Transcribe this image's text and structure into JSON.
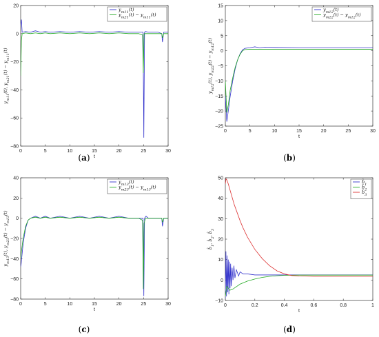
{
  "chart_data": [
    {
      "type": "line",
      "panel_label": "(a)",
      "xlabel": "t",
      "ylabel": "y_{m11}(t), y_{m21}(t) − y_{m11}(t)",
      "xlim": [
        0,
        30
      ],
      "ylim": [
        -80,
        20
      ],
      "xticks": [
        "0",
        "5",
        "10",
        "15",
        "20",
        "25",
        "30"
      ],
      "yticks": [
        "20",
        "0",
        "−20",
        "−40",
        "−60",
        "−80"
      ],
      "legend": [
        "y_{m11}(t)",
        "y_{m21}(t) − y_{m11}(t)"
      ],
      "legend_position": "top-right",
      "series": [
        {
          "name": "y_{m11}(t)",
          "color": "#3333cc",
          "x": [
            0,
            0.15,
            0.3,
            1,
            2,
            3,
            4,
            5,
            6,
            8,
            10,
            12,
            14,
            16,
            18,
            20,
            22,
            24,
            24.9,
            25.05,
            25.2,
            25.4,
            26,
            27,
            28,
            28.7,
            28.85,
            29.1,
            30
          ],
          "y": [
            6,
            10,
            1,
            1.5,
            1,
            2,
            1,
            1.5,
            1,
            1.5,
            1,
            1.5,
            1,
            1.5,
            1,
            1.5,
            1,
            1,
            1,
            -74,
            1,
            1.5,
            1,
            1,
            1,
            0,
            -6,
            1,
            1
          ]
        },
        {
          "name": "y_{m21}(t) − y_{m11}(t)",
          "color": "#22aa22",
          "x": [
            0,
            0.15,
            0.3,
            1,
            2,
            3,
            4,
            5,
            6,
            8,
            10,
            12,
            14,
            16,
            18,
            20,
            22,
            24,
            24.8,
            24.95,
            25.1,
            25.3,
            26,
            27,
            28,
            28.7,
            28.85,
            29.1,
            30
          ],
          "y": [
            -30,
            -5,
            0,
            0.5,
            0,
            0.5,
            0,
            0.5,
            0,
            0.5,
            0,
            0.5,
            0,
            0.5,
            0,
            0.5,
            0,
            0,
            -1,
            -28,
            0,
            0,
            0,
            0,
            0,
            0,
            -3,
            0,
            0
          ]
        }
      ]
    },
    {
      "type": "line",
      "panel_label": "(b)",
      "xlabel": "t",
      "ylabel": "y_{m12}(t), y_{m22}(t) − y_{m12}(t)",
      "xlim": [
        0,
        30
      ],
      "ylim": [
        -25,
        15
      ],
      "xticks": [
        "0",
        "5",
        "10",
        "15",
        "20",
        "25",
        "30"
      ],
      "yticks": [
        "15",
        "10",
        "5",
        "0",
        "−5",
        "−10",
        "−15",
        "−20",
        "−25"
      ],
      "legend": [
        "y_{m12}(t)",
        "y_{m22}(t) − y_{m12}(t)"
      ],
      "legend_position": "top-right",
      "series": [
        {
          "name": "y_{m12}(t)",
          "color": "#3333cc",
          "x": [
            0,
            0.3,
            0.6,
            1,
            1.5,
            2,
            2.5,
            3,
            3.5,
            4,
            5,
            6,
            7,
            8,
            10,
            15,
            20,
            25,
            30
          ],
          "y": [
            -15,
            -23.5,
            -20,
            -15,
            -10,
            -6,
            -3,
            -1,
            0.3,
            0.8,
            1,
            1.3,
            1,
            1.2,
            1.1,
            1,
            1,
            1,
            1
          ]
        },
        {
          "name": "y_{m22}(t) − y_{m12}(t)",
          "color": "#22aa22",
          "x": [
            0,
            0.3,
            0.6,
            1,
            1.5,
            2,
            2.5,
            3,
            3.5,
            4,
            5,
            6,
            7,
            8,
            10,
            15,
            20,
            25,
            30
          ],
          "y": [
            -10,
            -20.5,
            -18,
            -13,
            -9,
            -5.5,
            -3,
            -1.2,
            0,
            0.4,
            0.5,
            0.5,
            0.5,
            0.5,
            0.5,
            0.5,
            0.5,
            0.5,
            0.5
          ]
        }
      ]
    },
    {
      "type": "line",
      "panel_label": "(c)",
      "xlabel": "t",
      "ylabel": "y_{m13}(t), y_{m23}(t) − y_{m13}(t)",
      "xlim": [
        0,
        30
      ],
      "ylim": [
        -80,
        40
      ],
      "xticks": [
        "0",
        "5",
        "10",
        "15",
        "20",
        "25",
        "30"
      ],
      "yticks": [
        "40",
        "20",
        "0",
        "−20",
        "−40",
        "−60",
        "−80"
      ],
      "legend": [
        "y_{m13}(t)",
        "y_{m23}(t) − y_{m13}(t)"
      ],
      "legend_position": "top-right",
      "series": [
        {
          "name": "y_{m13}(t)",
          "color": "#3333cc",
          "x": [
            0,
            0.1,
            0.5,
            1,
            1.5,
            2,
            3,
            4,
            5,
            6,
            8,
            10,
            12,
            14,
            16,
            18,
            20,
            22,
            24,
            24.9,
            25.05,
            25.2,
            25.5,
            26,
            27,
            28,
            28.7,
            28.85,
            29.1,
            30
          ],
          "y": [
            -48,
            -45,
            -25,
            -10,
            -2,
            0,
            2,
            0,
            2,
            0,
            2,
            0,
            2,
            0,
            2,
            0,
            2,
            0,
            0,
            0,
            -77,
            0,
            2,
            0,
            0,
            0,
            0,
            -8,
            0,
            0
          ]
        },
        {
          "name": "y_{m23}(t) − y_{m13}(t)",
          "color": "#22aa22",
          "x": [
            0,
            0.1,
            0.5,
            1,
            1.5,
            2,
            3,
            4,
            5,
            6,
            8,
            10,
            12,
            14,
            16,
            18,
            20,
            22,
            24,
            24.8,
            24.95,
            25.1,
            25.4,
            26,
            27,
            28,
            28.7,
            28.85,
            29.1,
            30
          ],
          "y": [
            -40,
            -35,
            -20,
            -8,
            -2,
            0,
            1,
            0,
            1,
            0,
            1,
            0,
            1,
            0,
            1,
            0,
            1,
            0,
            0,
            -2,
            -70,
            -5,
            0,
            0,
            0,
            0,
            0,
            -4,
            0,
            0
          ]
        }
      ]
    },
    {
      "type": "line",
      "panel_label": "(d)",
      "xlabel": "t",
      "ylabel": "b̂_1, b̂_2, b̂_3",
      "xlim": [
        0,
        1
      ],
      "ylim": [
        -10,
        50
      ],
      "xticks": [
        "0",
        "0.2",
        "0.4",
        "0.6",
        "0.8",
        "1"
      ],
      "yticks": [
        "50",
        "40",
        "30",
        "20",
        "10",
        "0",
        "−10"
      ],
      "legend": [
        "b̂_1",
        "b̂_2",
        "b̂_3"
      ],
      "legend_position": "top-right",
      "series": [
        {
          "name": "b̂_1",
          "color": "#3333cc",
          "x": [
            0,
            0.004,
            0.008,
            0.012,
            0.016,
            0.02,
            0.024,
            0.028,
            0.032,
            0.036,
            0.04,
            0.046,
            0.052,
            0.058,
            0.065,
            0.075,
            0.09,
            0.1,
            0.12,
            0.15,
            0.2,
            0.3,
            0.4,
            0.5,
            0.6,
            0.8,
            1
          ],
          "y": [
            -9,
            14,
            -8,
            12,
            -6,
            10,
            -7,
            9,
            -4,
            8,
            -3,
            6,
            0,
            7,
            1,
            5,
            2,
            4,
            3,
            3,
            2.5,
            2.5,
            2.5,
            2.5,
            2.5,
            2.5,
            2.5
          ]
        },
        {
          "name": "b̂_2",
          "color": "#22aa22",
          "x": [
            0,
            0.01,
            0.02,
            0.03,
            0.05,
            0.07,
            0.1,
            0.15,
            0.2,
            0.25,
            0.3,
            0.35,
            0.4,
            0.5,
            0.6,
            0.8,
            1
          ],
          "y": [
            -8,
            -3,
            -4,
            -5,
            -4.5,
            -3.5,
            -2,
            -0.5,
            0.5,
            1.3,
            1.8,
            2.1,
            2.3,
            2.4,
            2.4,
            2.4,
            2.4
          ]
        },
        {
          "name": "b̂_3",
          "color": "#dd3333",
          "x": [
            0,
            0.005,
            0.01,
            0.02,
            0.04,
            0.06,
            0.08,
            0.1,
            0.12,
            0.15,
            0.2,
            0.25,
            0.3,
            0.35,
            0.4,
            0.45,
            0.5,
            0.6,
            0.7,
            0.8,
            0.9,
            1
          ],
          "y": [
            47,
            49.5,
            49,
            47,
            42,
            37,
            33,
            29,
            25.5,
            21,
            15,
            10.5,
            7,
            4.5,
            3,
            2.2,
            2,
            1.8,
            1.8,
            1.8,
            1.8,
            1.8
          ]
        }
      ]
    }
  ]
}
